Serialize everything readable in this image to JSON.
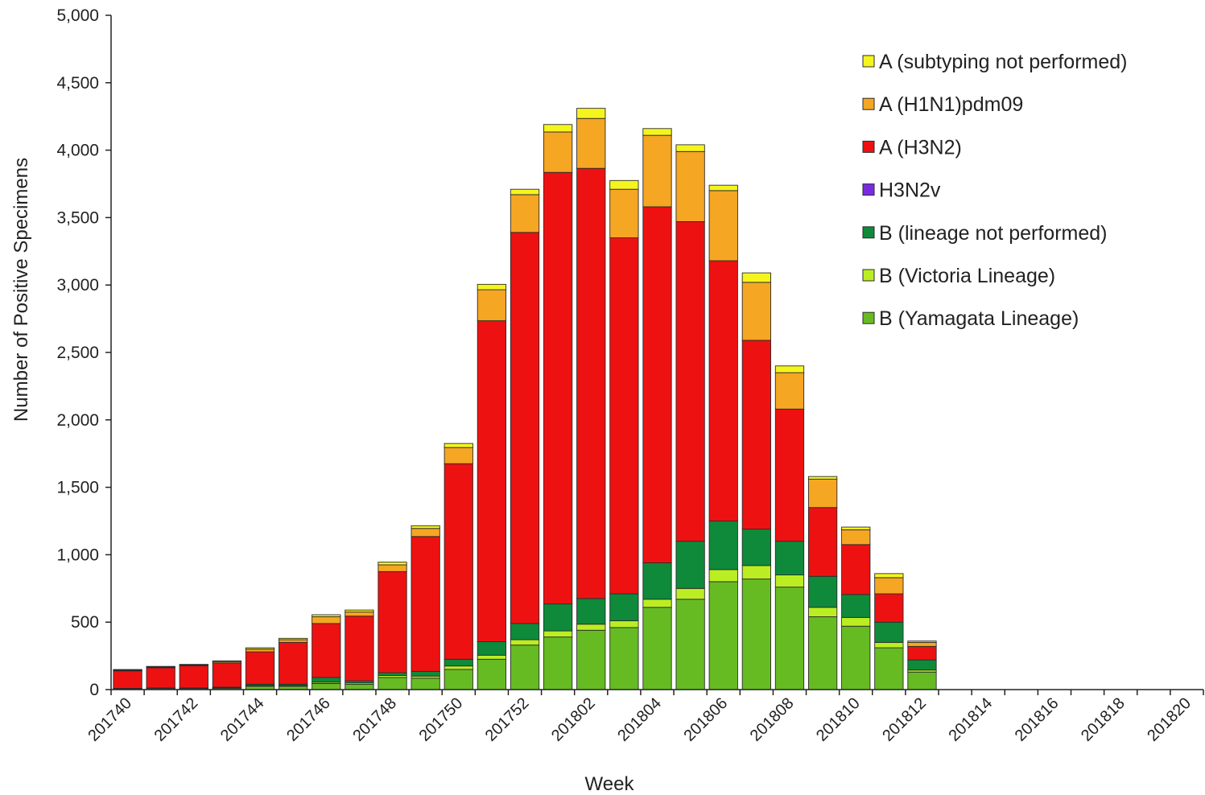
{
  "chart_data": {
    "type": "bar",
    "stacked": true,
    "title": "",
    "xlabel": "Week",
    "ylabel": "Number of Positive Specimens",
    "ylim": [
      0,
      5000
    ],
    "yticks": [
      "0",
      "500",
      "1,000",
      "1,500",
      "2,000",
      "2,500",
      "3,000",
      "3,500",
      "4,000",
      "4,500",
      "5,000"
    ],
    "ytick_values": [
      0,
      500,
      1000,
      1500,
      2000,
      2500,
      3000,
      3500,
      4000,
      4500,
      5000
    ],
    "categories": [
      "201740",
      "201741",
      "201742",
      "201743",
      "201744",
      "201745",
      "201746",
      "201747",
      "201748",
      "201749",
      "201750",
      "201751",
      "201752",
      "201801",
      "201802",
      "201803",
      "201804",
      "201805",
      "201806",
      "201807",
      "201808",
      "201809",
      "201810",
      "201811",
      "201812",
      "201813",
      "201814",
      "201815",
      "201816",
      "201817",
      "201818",
      "201819",
      "201820"
    ],
    "xtick_labels": [
      "201740",
      "201742",
      "201744",
      "201746",
      "201748",
      "201750",
      "201752",
      "201802",
      "201804",
      "201806",
      "201808",
      "201810",
      "201812",
      "201814",
      "201816",
      "201818",
      "201820"
    ],
    "legend_position": "top-right",
    "grid": false,
    "series": [
      {
        "name": "B (Yamagata Lineage)",
        "color": "#66BB22",
        "values": [
          5,
          8,
          8,
          10,
          25,
          25,
          45,
          40,
          90,
          85,
          150,
          225,
          330,
          390,
          440,
          460,
          610,
          670,
          800,
          820,
          760,
          540,
          470,
          310,
          130,
          0,
          0,
          0,
          0,
          0,
          0,
          0,
          0
        ]
      },
      {
        "name": "B (Victoria Lineage)",
        "color": "#BBEE22",
        "values": [
          2,
          2,
          2,
          3,
          5,
          5,
          10,
          10,
          15,
          15,
          25,
          30,
          40,
          45,
          45,
          50,
          60,
          80,
          90,
          100,
          90,
          70,
          65,
          40,
          15,
          0,
          0,
          0,
          0,
          0,
          0,
          0,
          0
        ]
      },
      {
        "name": "B (lineage not performed)",
        "color": "#0E8A3A",
        "values": [
          2,
          2,
          2,
          5,
          10,
          10,
          35,
          15,
          20,
          35,
          50,
          100,
          120,
          200,
          190,
          200,
          270,
          350,
          360,
          270,
          250,
          230,
          170,
          150,
          75,
          0,
          0,
          0,
          0,
          0,
          0,
          0,
          0
        ]
      },
      {
        "name": "H3N2v",
        "color": "#7A2BE2",
        "values": [
          0,
          0,
          0,
          0,
          0,
          0,
          0,
          0,
          0,
          0,
          0,
          0,
          0,
          0,
          0,
          0,
          0,
          0,
          0,
          0,
          0,
          0,
          0,
          0,
          0,
          0,
          0,
          0,
          0,
          0,
          0,
          0,
          0
        ]
      },
      {
        "name": "A (H3N2)",
        "color": "#EE1111",
        "values": [
          130,
          150,
          165,
          180,
          240,
          310,
          400,
          480,
          750,
          1000,
          1450,
          2380,
          2900,
          3200,
          3190,
          2640,
          2640,
          2370,
          1930,
          1400,
          980,
          510,
          370,
          210,
          100,
          0,
          0,
          0,
          0,
          0,
          0,
          0,
          0
        ]
      },
      {
        "name": "A (H1N1)pdm09",
        "color": "#F5A623",
        "values": [
          5,
          5,
          5,
          10,
          20,
          20,
          50,
          30,
          50,
          60,
          120,
          230,
          280,
          300,
          370,
          360,
          530,
          520,
          520,
          430,
          270,
          210,
          110,
          120,
          30,
          0,
          0,
          0,
          0,
          0,
          0,
          0,
          0
        ]
      },
      {
        "name": "A (subtyping not performed)",
        "color": "#F5F51E",
        "values": [
          5,
          5,
          5,
          5,
          10,
          10,
          15,
          15,
          20,
          20,
          30,
          40,
          40,
          55,
          75,
          65,
          50,
          50,
          40,
          70,
          50,
          20,
          20,
          30,
          10,
          0,
          0,
          0,
          0,
          0,
          0,
          0,
          0
        ]
      }
    ]
  }
}
